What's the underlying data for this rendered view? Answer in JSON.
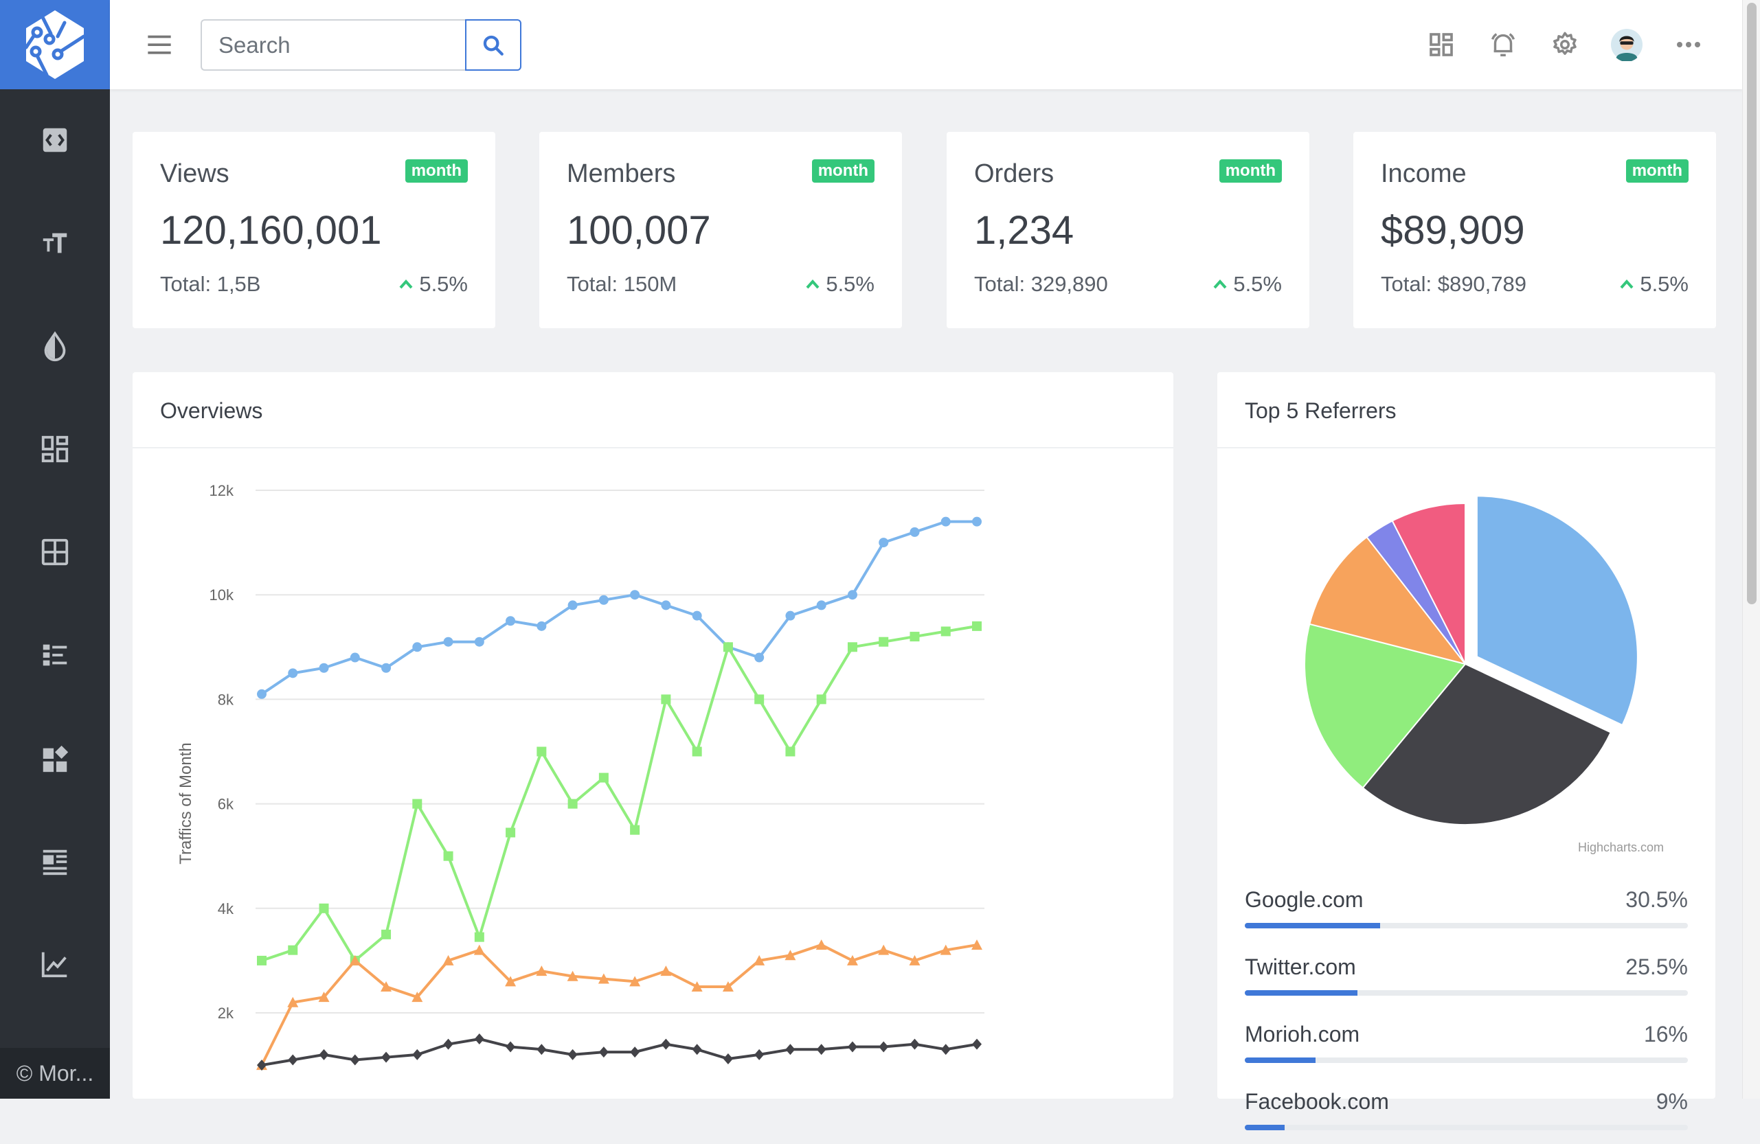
{
  "colors": {
    "accent": "#3f78d8",
    "badge": "#34c77b",
    "sidebar": "#2c3036"
  },
  "sidebar": {
    "logo": "app-logo",
    "items": [
      {
        "name": "code-icon"
      },
      {
        "name": "text-size-icon"
      },
      {
        "name": "color-drop-icon"
      },
      {
        "name": "dashboard-icon"
      },
      {
        "name": "table-icon"
      },
      {
        "name": "list-icon"
      },
      {
        "name": "widgets-icon"
      },
      {
        "name": "article-icon"
      },
      {
        "name": "chart-line-icon"
      }
    ],
    "footer": "© Mor..."
  },
  "header": {
    "search_placeholder": "Search",
    "icons": [
      "dashboard-icon",
      "bell-icon",
      "gear-icon",
      "avatar",
      "more-icon"
    ]
  },
  "cards": [
    {
      "title": "Views",
      "badge": "month",
      "value": "120,160,001",
      "total": "Total: 1,5B",
      "change": "5.5%"
    },
    {
      "title": "Members",
      "badge": "month",
      "value": "100,007",
      "total": "Total: 150M",
      "change": "5.5%"
    },
    {
      "title": "Orders",
      "badge": "month",
      "value": "1,234",
      "total": "Total: 329,890",
      "change": "5.5%"
    },
    {
      "title": "Income",
      "badge": "month",
      "value": "$89,909",
      "total": "Total: $890,789",
      "change": "5.5%"
    }
  ],
  "overviews": {
    "title": "Overviews"
  },
  "referrers": {
    "title": "Top 5 Referrers",
    "credit": "Highcharts.com",
    "items": [
      {
        "name": "Google.com",
        "pct": "30.5%",
        "value": 30.5
      },
      {
        "name": "Twitter.com",
        "pct": "25.5%",
        "value": 25.5
      },
      {
        "name": "Morioh.com",
        "pct": "16%",
        "value": 16
      },
      {
        "name": "Facebook.com",
        "pct": "9%",
        "value": 9
      }
    ]
  },
  "chart_data": [
    {
      "type": "line",
      "ylabel": "Traffics of Month",
      "yticks": [
        "2k",
        "4k",
        "6k",
        "8k",
        "10k",
        "12k"
      ],
      "ylim": [
        0,
        12000
      ],
      "grid": true,
      "series": [
        {
          "color": "#7cb5ec",
          "marker": "circle",
          "values": [
            8100,
            8500,
            8600,
            8800,
            8600,
            9000,
            9100,
            9100,
            9500,
            9400,
            9800,
            9900,
            10000,
            9800,
            9600,
            9000,
            8800,
            9600,
            9800,
            10000,
            11000,
            11200,
            11400,
            11400
          ]
        },
        {
          "color": "#90ed7d",
          "marker": "square",
          "values": [
            3000,
            3200,
            4000,
            3000,
            3500,
            6000,
            5000,
            3450,
            5450,
            7000,
            6000,
            6500,
            5500,
            8000,
            7000,
            9000,
            8000,
            7000,
            8000,
            9000,
            9100,
            9200,
            9300,
            9400
          ]
        },
        {
          "color": "#f7a35c",
          "marker": "triangle",
          "values": [
            1000,
            2200,
            2300,
            3000,
            2500,
            2300,
            3000,
            3200,
            2600,
            2800,
            2700,
            2650,
            2600,
            2800,
            2500,
            2500,
            3000,
            3100,
            3300,
            3000,
            3200,
            3000,
            3200,
            3300
          ]
        },
        {
          "color": "#434348",
          "marker": "diamond",
          "values": [
            1000,
            1100,
            1200,
            1100,
            1150,
            1200,
            1400,
            1500,
            1350,
            1300,
            1200,
            1250,
            1250,
            1400,
            1300,
            1120,
            1200,
            1300,
            1300,
            1350,
            1350,
            1400,
            1300,
            1400
          ]
        }
      ]
    },
    {
      "type": "pie",
      "slices": [
        {
          "value": 32,
          "color": "#7cb5ec",
          "sliced": true
        },
        {
          "value": 29,
          "color": "#434348"
        },
        {
          "value": 18,
          "color": "#90ed7d"
        },
        {
          "value": 10.5,
          "color": "#f7a35c"
        },
        {
          "value": 3,
          "color": "#8085e9"
        },
        {
          "value": 7.5,
          "color": "#f15c80"
        }
      ]
    }
  ]
}
